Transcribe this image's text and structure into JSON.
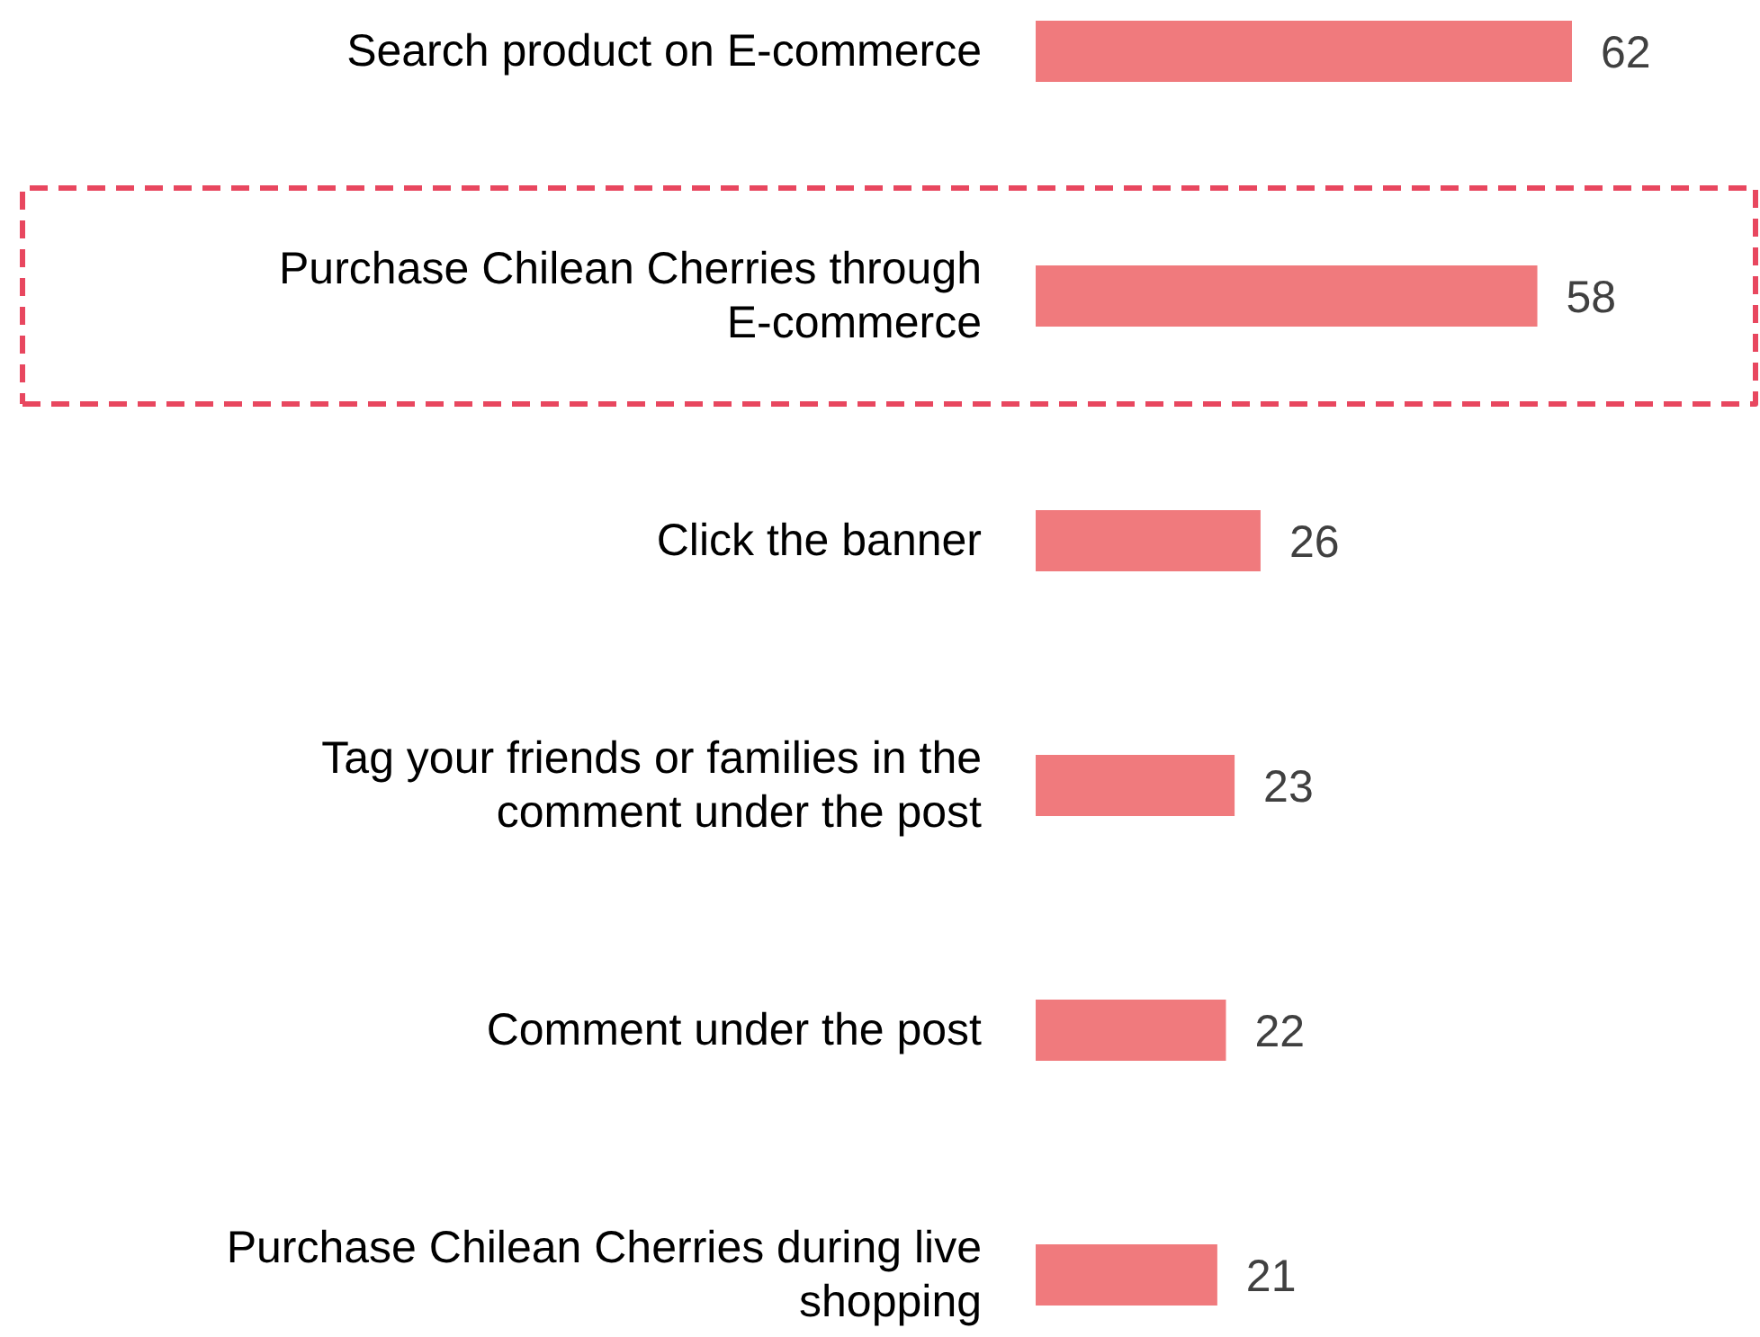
{
  "chart_data": {
    "type": "bar",
    "orientation": "horizontal",
    "categories": [
      "Search product on E-commerce",
      "Purchase Chilean Cherries through E-commerce",
      "Click the banner",
      "Tag your friends or families in the comment under the post",
      "Comment under the post",
      "Purchase Chilean Cherries during live shopping"
    ],
    "values": [
      62,
      58,
      26,
      23,
      22,
      21
    ],
    "color": "#f07a7d",
    "data_labels": true
  }
}
